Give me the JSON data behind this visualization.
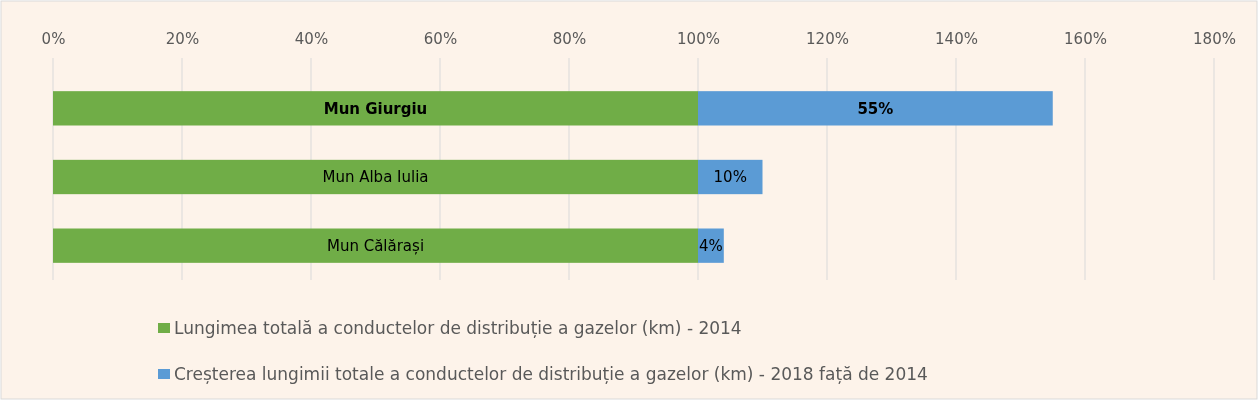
{
  "chart_data": {
    "type": "bar",
    "orientation": "horizontal",
    "stacked": true,
    "categories": [
      "Mun Giurgiu",
      "Mun Alba Iulia",
      "Mun Călărași"
    ],
    "series": [
      {
        "name": "Lungimea totală a conductelor de distribuție a gazelor (km) - 2014",
        "color": "#70ad47",
        "values": [
          100,
          100,
          100
        ]
      },
      {
        "name": "Creșterea lungimii totale a conductelor de distribuție a gazelor (km) - 2018 față de 2014",
        "color": "#5b9bd5",
        "values": [
          55,
          10,
          4
        ],
        "value_labels": [
          "55%",
          "10%",
          "4%"
        ]
      }
    ],
    "xlim": [
      0,
      180
    ],
    "xticks": [
      {
        "value": 0,
        "label": "0%"
      },
      {
        "value": 20,
        "label": "20%"
      },
      {
        "value": 40,
        "label": "40%"
      },
      {
        "value": 60,
        "label": "60%"
      },
      {
        "value": 80,
        "label": "80%"
      },
      {
        "value": 100,
        "label": "100%"
      },
      {
        "value": 120,
        "label": "120%"
      },
      {
        "value": 140,
        "label": "140%"
      },
      {
        "value": 160,
        "label": "160%"
      },
      {
        "value": 180,
        "label": "180%"
      }
    ],
    "grid": "x",
    "legend": "bottom"
  }
}
